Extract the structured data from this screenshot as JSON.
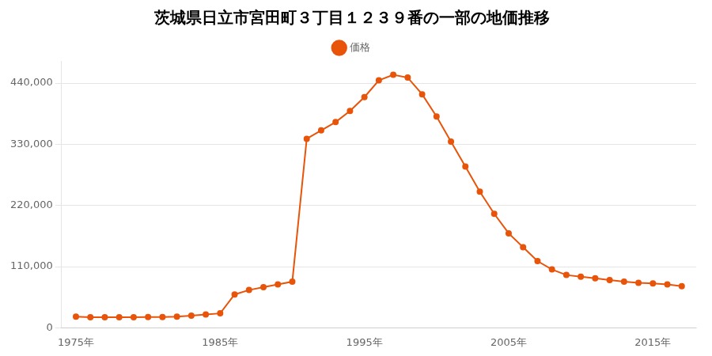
{
  "chart_data": {
    "type": "line",
    "title": "茨城県日立市宮田町３丁目１２３９番の一部の地価推移",
    "x": [
      1975,
      1976,
      1977,
      1978,
      1979,
      1980,
      1981,
      1982,
      1983,
      1984,
      1985,
      1986,
      1987,
      1988,
      1989,
      1990,
      1991,
      1992,
      1993,
      1994,
      1995,
      1996,
      1997,
      1998,
      1999,
      2000,
      2001,
      2002,
      2003,
      2004,
      2005,
      2006,
      2007,
      2008,
      2009,
      2010,
      2011,
      2012,
      2013,
      2014,
      2015,
      2016,
      2017
    ],
    "series": [
      {
        "name": "価格",
        "color": "#e8540a",
        "marker": "circle",
        "values": [
          20000,
          19000,
          19000,
          19000,
          19000,
          19500,
          19500,
          20000,
          22000,
          24000,
          26000,
          60000,
          68000,
          73000,
          78000,
          83000,
          340000,
          355000,
          370000,
          390000,
          415000,
          445000,
          455000,
          450000,
          420000,
          380000,
          335000,
          290000,
          245000,
          205000,
          170000,
          145000,
          120000,
          105000,
          95000,
          92000,
          89000,
          86000,
          83000,
          81000,
          80000,
          78000,
          75000
        ]
      }
    ],
    "xlim": [
      1974,
      2018
    ],
    "xticks": [
      {
        "value": 1975,
        "label": "1975年"
      },
      {
        "value": 1985,
        "label": "1985年"
      },
      {
        "value": 1995,
        "label": "1995年"
      },
      {
        "value": 2005,
        "label": "2005年"
      },
      {
        "value": 2015,
        "label": "2015年"
      }
    ],
    "ylim": [
      0,
      480000
    ],
    "yticks": [
      0,
      {
        "value": 110000,
        "label": "110,000"
      },
      {
        "value": 220000,
        "label": "220,000"
      },
      {
        "value": 330000,
        "label": "330,000"
      },
      {
        "value": 440000,
        "label": "440,000"
      }
    ],
    "grid": "y",
    "legend": "top"
  }
}
